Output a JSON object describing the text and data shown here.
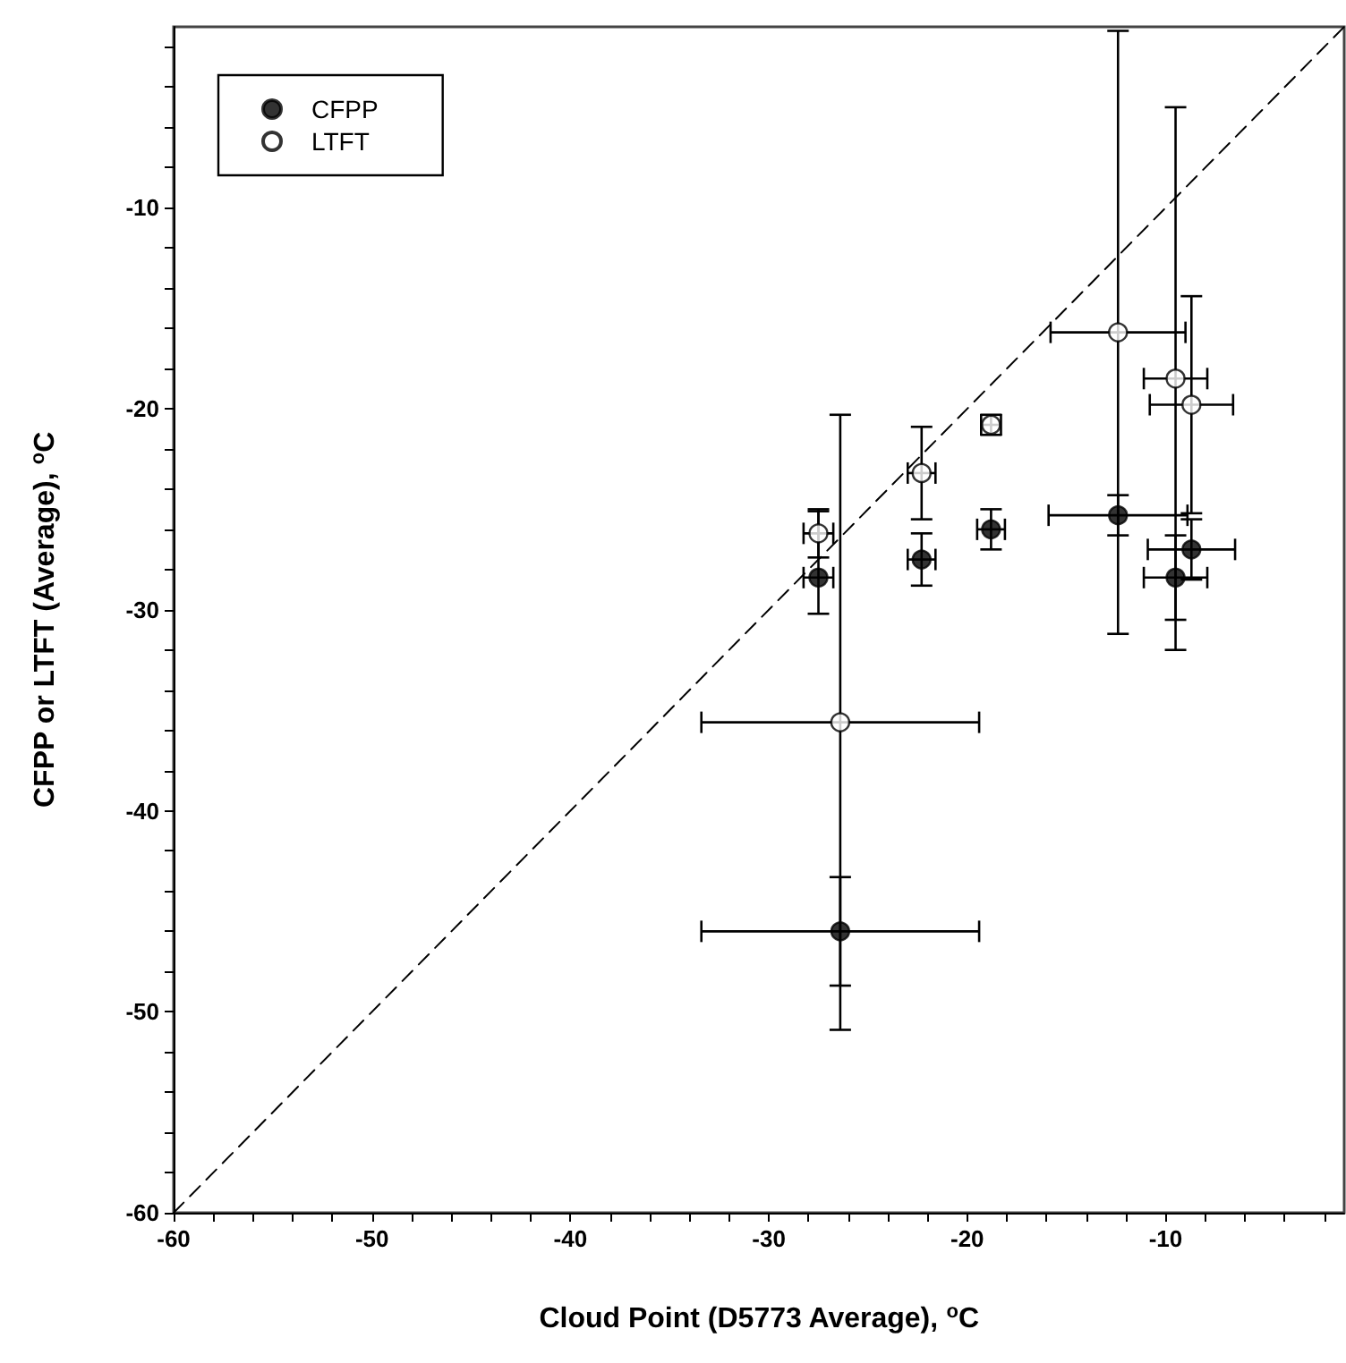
{
  "chart_data": {
    "type": "scatter",
    "xlabel": "Cloud Point (D5773 Average), $^{o}$C",
    "ylabel": "CFPP or LTFT (Average), $^{o}$C",
    "xlim": [
      -60,
      -1
    ],
    "ylim": [
      -60,
      -1
    ],
    "xticks": [
      -60,
      {
        "value": -58,
        "label": null
      },
      {
        "value": -56,
        "label": null
      },
      {
        "value": -54,
        "label": null
      },
      {
        "value": -52,
        "label": null
      },
      -50,
      {
        "value": -48,
        "label": null
      },
      {
        "value": -46,
        "label": null
      },
      {
        "value": -44,
        "label": null
      },
      {
        "value": -42,
        "label": null
      },
      -40,
      {
        "value": -38,
        "label": null
      },
      {
        "value": -36,
        "label": null
      },
      {
        "value": -34,
        "label": null
      },
      {
        "value": -32,
        "label": null
      },
      -30,
      {
        "value": -28,
        "label": null
      },
      {
        "value": -26,
        "label": null
      },
      {
        "value": -24,
        "label": null
      },
      {
        "value": -22,
        "label": null
      },
      -20,
      {
        "value": -18,
        "label": null
      },
      {
        "value": -16,
        "label": null
      },
      {
        "value": -14,
        "label": null
      },
      {
        "value": -12,
        "label": null
      },
      -10,
      {
        "value": -8,
        "label": null
      },
      {
        "value": -6,
        "label": null
      },
      {
        "value": -4,
        "label": null
      },
      {
        "value": -2,
        "label": null
      }
    ],
    "yticks": [
      -60,
      {
        "value": -58,
        "label": null
      },
      {
        "value": -56,
        "label": null
      },
      {
        "value": -54,
        "label": null
      },
      {
        "value": -52,
        "label": null
      },
      -50,
      {
        "value": -48,
        "label": null
      },
      {
        "value": -46,
        "label": null
      },
      {
        "value": -44,
        "label": null
      },
      {
        "value": -42,
        "label": null
      },
      -40,
      {
        "value": -38,
        "label": null
      },
      {
        "value": -36,
        "label": null
      },
      {
        "value": -34,
        "label": null
      },
      {
        "value": -32,
        "label": null
      },
      -30,
      {
        "value": -28,
        "label": null
      },
      {
        "value": -26,
        "label": null
      },
      {
        "value": -24,
        "label": null
      },
      {
        "value": -22,
        "label": null
      },
      -20,
      {
        "value": -18,
        "label": null
      },
      {
        "value": -16,
        "label": null
      },
      {
        "value": -14,
        "label": null
      },
      {
        "value": -12,
        "label": null
      },
      -10,
      {
        "value": -8,
        "label": null
      },
      {
        "value": -6,
        "label": null
      },
      {
        "value": -4,
        "label": null
      },
      {
        "value": -2,
        "label": null
      }
    ],
    "legend": "top left",
    "marker": "circle",
    "series": [
      {
        "name": "CFPP",
        "color": "#000000",
        "x": [
          -27.5,
          -22.3,
          -18.8,
          -12.4,
          -9.5,
          -8.7,
          -26.4
        ],
        "values": [
          -28.4,
          -27.5,
          -26.0,
          -25.3,
          -28.4,
          -27.0,
          -46.0
        ],
        "errors": [
          [
            -30.2,
            -25.1
          ],
          1.3,
          1.0,
          1.0,
          2.1,
          1.5,
          2.7
        ],
        "xerrors": [
          0.75,
          0.7,
          0.7,
          3.5,
          1.6,
          2.2,
          7.0
        ]
      },
      {
        "name": "LTFT",
        "color": "#ffffff",
        "x": [
          -27.5,
          -22.3,
          -18.8,
          -12.4,
          -9.5,
          -8.7,
          -26.4
        ],
        "values": [
          -26.2,
          -23.2,
          -20.8,
          -16.2,
          -18.5,
          -19.8,
          -35.6
        ],
        "errors": [
          1.2,
          2.3,
          0.5,
          15.0,
          13.5,
          5.4,
          15.3
        ],
        "xerrors": [
          0.75,
          0.7,
          0.5,
          3.4,
          1.6,
          2.1,
          7.0
        ]
      },
      {
        "type": "line",
        "color": "#000000",
        "line_style": "dashed",
        "marker": "none",
        "x": [
          -60,
          -1
        ],
        "values": [
          -60,
          -1
        ]
      }
    ]
  }
}
